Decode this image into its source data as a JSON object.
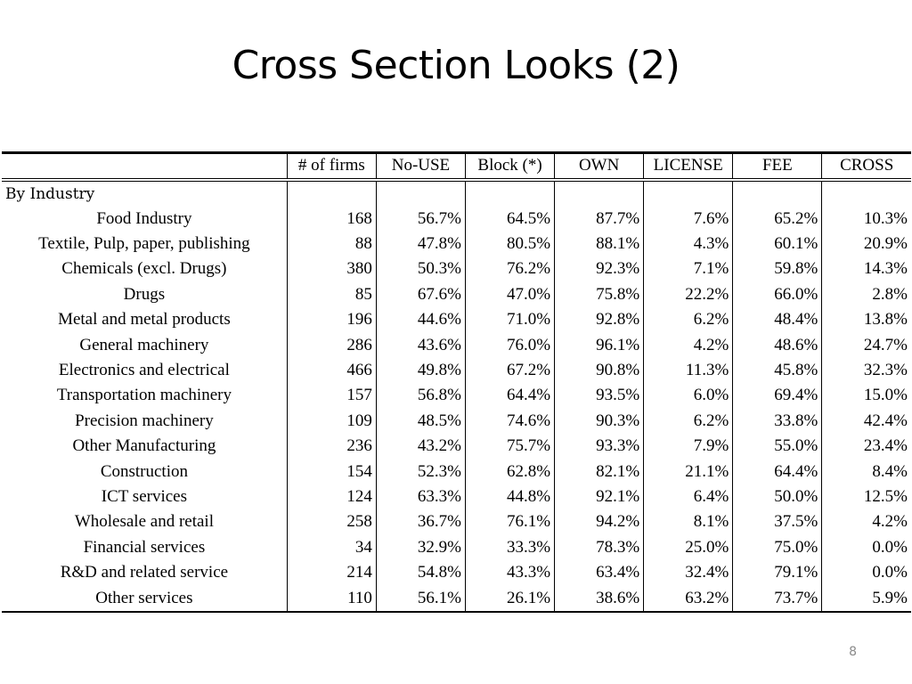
{
  "slide": {
    "title": "Cross Section Looks (2)",
    "page_number": "8"
  },
  "table": {
    "columns": [
      "",
      "# of firms",
      "No-USE",
      "Block (*)",
      "OWN",
      "LICENSE",
      "FEE",
      "CROSS"
    ],
    "section_label": "By Industry",
    "rows": [
      [
        "Food Industry",
        "168",
        "56.7%",
        "64.5%",
        "87.7%",
        "7.6%",
        "65.2%",
        "10.3%"
      ],
      [
        "Textile, Pulp, paper, publishing",
        "88",
        "47.8%",
        "80.5%",
        "88.1%",
        "4.3%",
        "60.1%",
        "20.9%"
      ],
      [
        "Chemicals (excl. Drugs)",
        "380",
        "50.3%",
        "76.2%",
        "92.3%",
        "7.1%",
        "59.8%",
        "14.3%"
      ],
      [
        "Drugs",
        "85",
        "67.6%",
        "47.0%",
        "75.8%",
        "22.2%",
        "66.0%",
        "2.8%"
      ],
      [
        "Metal and metal products",
        "196",
        "44.6%",
        "71.0%",
        "92.8%",
        "6.2%",
        "48.4%",
        "13.8%"
      ],
      [
        "General machinery",
        "286",
        "43.6%",
        "76.0%",
        "96.1%",
        "4.2%",
        "48.6%",
        "24.7%"
      ],
      [
        "Electronics and electrical",
        "466",
        "49.8%",
        "67.2%",
        "90.8%",
        "11.3%",
        "45.8%",
        "32.3%"
      ],
      [
        "Transportation machinery",
        "157",
        "56.8%",
        "64.4%",
        "93.5%",
        "6.0%",
        "69.4%",
        "15.0%"
      ],
      [
        "Precision machinery",
        "109",
        "48.5%",
        "74.6%",
        "90.3%",
        "6.2%",
        "33.8%",
        "42.4%"
      ],
      [
        "Other Manufacturing",
        "236",
        "43.2%",
        "75.7%",
        "93.3%",
        "7.9%",
        "55.0%",
        "23.4%"
      ],
      [
        "Construction",
        "154",
        "52.3%",
        "62.8%",
        "82.1%",
        "21.1%",
        "64.4%",
        "8.4%"
      ],
      [
        "ICT services",
        "124",
        "63.3%",
        "44.8%",
        "92.1%",
        "6.4%",
        "50.0%",
        "12.5%"
      ],
      [
        "Wholesale and retail",
        "258",
        "36.7%",
        "76.1%",
        "94.2%",
        "8.1%",
        "37.5%",
        "4.2%"
      ],
      [
        "Financial services",
        "34",
        "32.9%",
        "33.3%",
        "78.3%",
        "25.0%",
        "75.0%",
        "0.0%"
      ],
      [
        "R&D and related service",
        "214",
        "54.8%",
        "43.3%",
        "63.4%",
        "32.4%",
        "79.1%",
        "0.0%"
      ],
      [
        "Other services",
        "110",
        "56.1%",
        "26.1%",
        "38.6%",
        "63.2%",
        "73.7%",
        "5.9%"
      ]
    ]
  }
}
